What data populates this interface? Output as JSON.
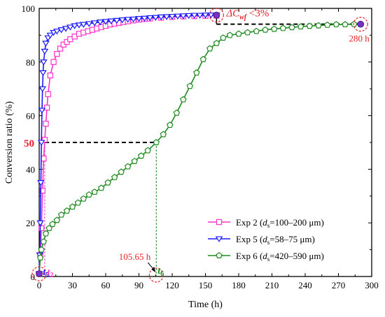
{
  "chart_data": {
    "type": "line",
    "xlabel": "Time (h)",
    "ylabel": "Conversion ratio (%)",
    "xlim": [
      0,
      300
    ],
    "ylim": [
      0,
      100
    ],
    "xticks": [
      "0",
      "30",
      "60",
      "90",
      "120",
      "150",
      "180",
      "210",
      "240",
      "270",
      "300"
    ],
    "yticks": [
      "0",
      "20",
      "40",
      "60",
      "80",
      "100"
    ],
    "legend_position": "lower-right",
    "series": [
      {
        "name": "Exp 2",
        "name_italic": "d",
        "name_sub": "s",
        "name_range": "=100–200 μm)",
        "color": "#ff33cc",
        "marker": "square",
        "x": [
          0,
          1,
          2,
          3,
          4,
          5,
          6,
          7,
          8,
          10,
          13,
          16,
          19,
          22,
          25,
          28,
          32,
          36,
          40,
          44,
          48,
          52,
          56,
          60,
          64,
          68,
          72,
          76,
          80,
          85,
          90,
          95,
          100,
          110,
          120,
          130,
          140,
          150,
          160
        ],
        "y": [
          1,
          8,
          18,
          32,
          44,
          51,
          57,
          63,
          68,
          75,
          80,
          83,
          85,
          86.5,
          87.5,
          88.5,
          89.5,
          90.5,
          91,
          91.5,
          92,
          92.5,
          93,
          93.5,
          94,
          94.3,
          94.6,
          94.9,
          95.2,
          95.5,
          95.8,
          96,
          96.2,
          96.5,
          96.8,
          97,
          97.1,
          97.2,
          97.3
        ]
      },
      {
        "name": "Exp 5",
        "name_italic": "d",
        "name_sub": "s",
        "name_range": "=58–75 μm)",
        "color": "#1a1aff",
        "marker": "triangle-down",
        "x": [
          0,
          0.5,
          1,
          1.5,
          2,
          2.5,
          3,
          3.5,
          4,
          5,
          6,
          8,
          10,
          13,
          16,
          20,
          24,
          28,
          32,
          36,
          40,
          45,
          50,
          55,
          60,
          65,
          70,
          75,
          80,
          85,
          90,
          95,
          100,
          105,
          110,
          115,
          120,
          125,
          130,
          135,
          140,
          145,
          150,
          155,
          160
        ],
        "y": [
          1,
          8,
          20,
          35,
          50,
          62,
          70,
          76,
          80,
          84,
          87,
          89,
          90,
          91,
          91.5,
          92,
          92.5,
          93,
          93.5,
          93.8,
          94,
          94.3,
          94.6,
          94.9,
          95.1,
          95.3,
          95.5,
          95.7,
          95.9,
          96,
          96.2,
          96.3,
          96.5,
          96.6,
          96.8,
          96.9,
          97,
          97.1,
          97.2,
          97.3,
          97.4,
          97.4,
          97.5,
          97.5,
          97.5
        ]
      },
      {
        "name": "Exp 6",
        "name_italic": "d",
        "name_sub": "s",
        "name_range": "=420–590 μm)",
        "color": "#1f8a1f",
        "marker": "pentagon",
        "x": [
          0,
          1,
          2,
          4,
          6,
          9,
          12,
          16,
          20,
          25,
          30,
          35,
          40,
          45,
          50,
          56,
          62,
          68,
          74,
          80,
          86,
          92,
          98,
          105.65,
          112,
          118,
          124,
          130,
          136,
          142,
          148,
          154,
          160,
          166,
          172,
          180,
          188,
          196,
          204,
          212,
          220,
          228,
          236,
          244,
          252,
          260,
          268,
          276,
          284,
          290
        ],
        "y": [
          1,
          7,
          10,
          13,
          16,
          18,
          19.5,
          21,
          23,
          24.5,
          26,
          27.5,
          29,
          30.5,
          31.5,
          33,
          35,
          37,
          39,
          41,
          43,
          45,
          47,
          50,
          53,
          56.5,
          61,
          66,
          71,
          76,
          81,
          85,
          87,
          89,
          90,
          90.5,
          91,
          91.5,
          92,
          92.3,
          92.6,
          92.9,
          93.2,
          93.4,
          93.6,
          93.8,
          94,
          94,
          94.1,
          94.1
        ]
      }
    ],
    "annotations": {
      "y50_label": "50",
      "t2_label": "t",
      "t2_sub": "2",
      "t5_label": "t",
      "t5_sub": "5",
      "t6_label": "t",
      "t6_sub": "6",
      "time_label": "105.65 h",
      "end_label": "280 h",
      "delta_prefix": "ΔC",
      "delta_sub": "wf",
      "delta_suffix": " <3%"
    },
    "colors": {
      "annotation_red": "#e8212a",
      "marker_purple": "#7a2fc7"
    }
  }
}
